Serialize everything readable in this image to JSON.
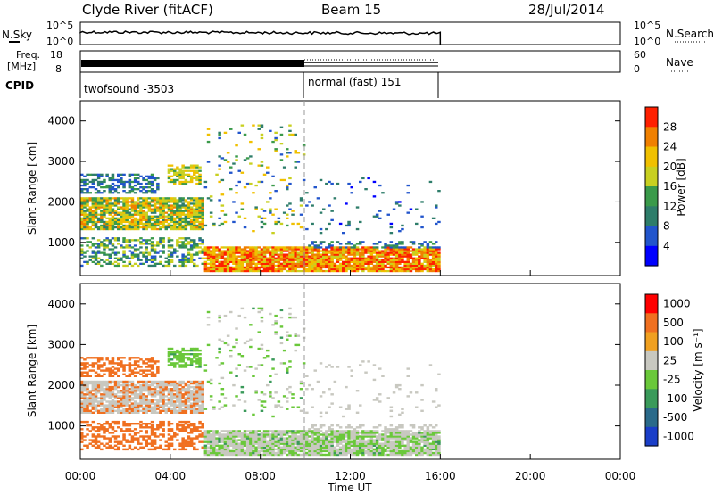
{
  "header": {
    "station": "Clyde River (fitACF)",
    "beam": "Beam 15",
    "date": "28/Jul/2014"
  },
  "top_panels": {
    "nsky_label": "N.Sky",
    "nsky_tick_high": "10^5",
    "nsky_tick_low": "10^0",
    "nsearch_label": "N.Search",
    "nsearch_tick_high": "10^5",
    "nsearch_tick_low": "10^0",
    "freq_label_1": "Freq.",
    "freq_label_2": "[MHz]",
    "freq_tick_high": "18",
    "freq_tick_low": "8",
    "nave_label": "Nave",
    "nave_tick_high": "60",
    "nave_tick_low": "0",
    "cpid_label": "CPID",
    "cpid_1": "twofsound -3503",
    "cpid_2": "normal (fast) 151"
  },
  "chart_data": [
    {
      "type": "heatmap",
      "name": "power",
      "ylabel": "Slant Range [km]",
      "xlabel": "Time UT",
      "xlim": [
        0,
        24
      ],
      "ylim": [
        180,
        4500
      ],
      "x_ticks": [
        "00:00",
        "04:00",
        "08:00",
        "12:00",
        "16:00",
        "20:00",
        "00:00"
      ],
      "y_ticks": [
        "1000",
        "2000",
        "3000",
        "4000"
      ],
      "data_end_hour": 16,
      "mode_change_hour": 10,
      "colorbar": {
        "label": "Power [dB]",
        "ticks": [
          "4",
          "8",
          "12",
          "16",
          "20",
          "24",
          "28"
        ],
        "colors": [
          "#0000ff",
          "#2255cc",
          "#2e7d6a",
          "#3a9a4a",
          "#c8d020",
          "#f0c000",
          "#f08000",
          "#ff2000"
        ]
      }
    },
    {
      "type": "heatmap",
      "name": "velocity",
      "ylabel": "Slant Range [km]",
      "xlabel": "Time UT",
      "xlim": [
        0,
        24
      ],
      "ylim": [
        180,
        4500
      ],
      "x_ticks": [
        "00:00",
        "04:00",
        "08:00",
        "12:00",
        "16:00",
        "20:00",
        "00:00"
      ],
      "y_ticks": [
        "1000",
        "2000",
        "3000",
        "4000"
      ],
      "colorbar": {
        "label": "Velocity [m s⁻¹]",
        "ticks": [
          "1000",
          "500",
          "100",
          "25",
          "-25",
          "-100",
          "-500",
          "-1000"
        ],
        "colors": [
          "#1a3ec8",
          "#2a6a8a",
          "#3a9a5a",
          "#6ac83a",
          "#c8c8c0",
          "#f0a020",
          "#f07020",
          "#ff0000"
        ]
      }
    }
  ],
  "axis": {
    "xlabel": "Time UT",
    "x_ticks": [
      "00:00",
      "04:00",
      "08:00",
      "12:00",
      "16:00",
      "20:00",
      "00:00"
    ]
  }
}
